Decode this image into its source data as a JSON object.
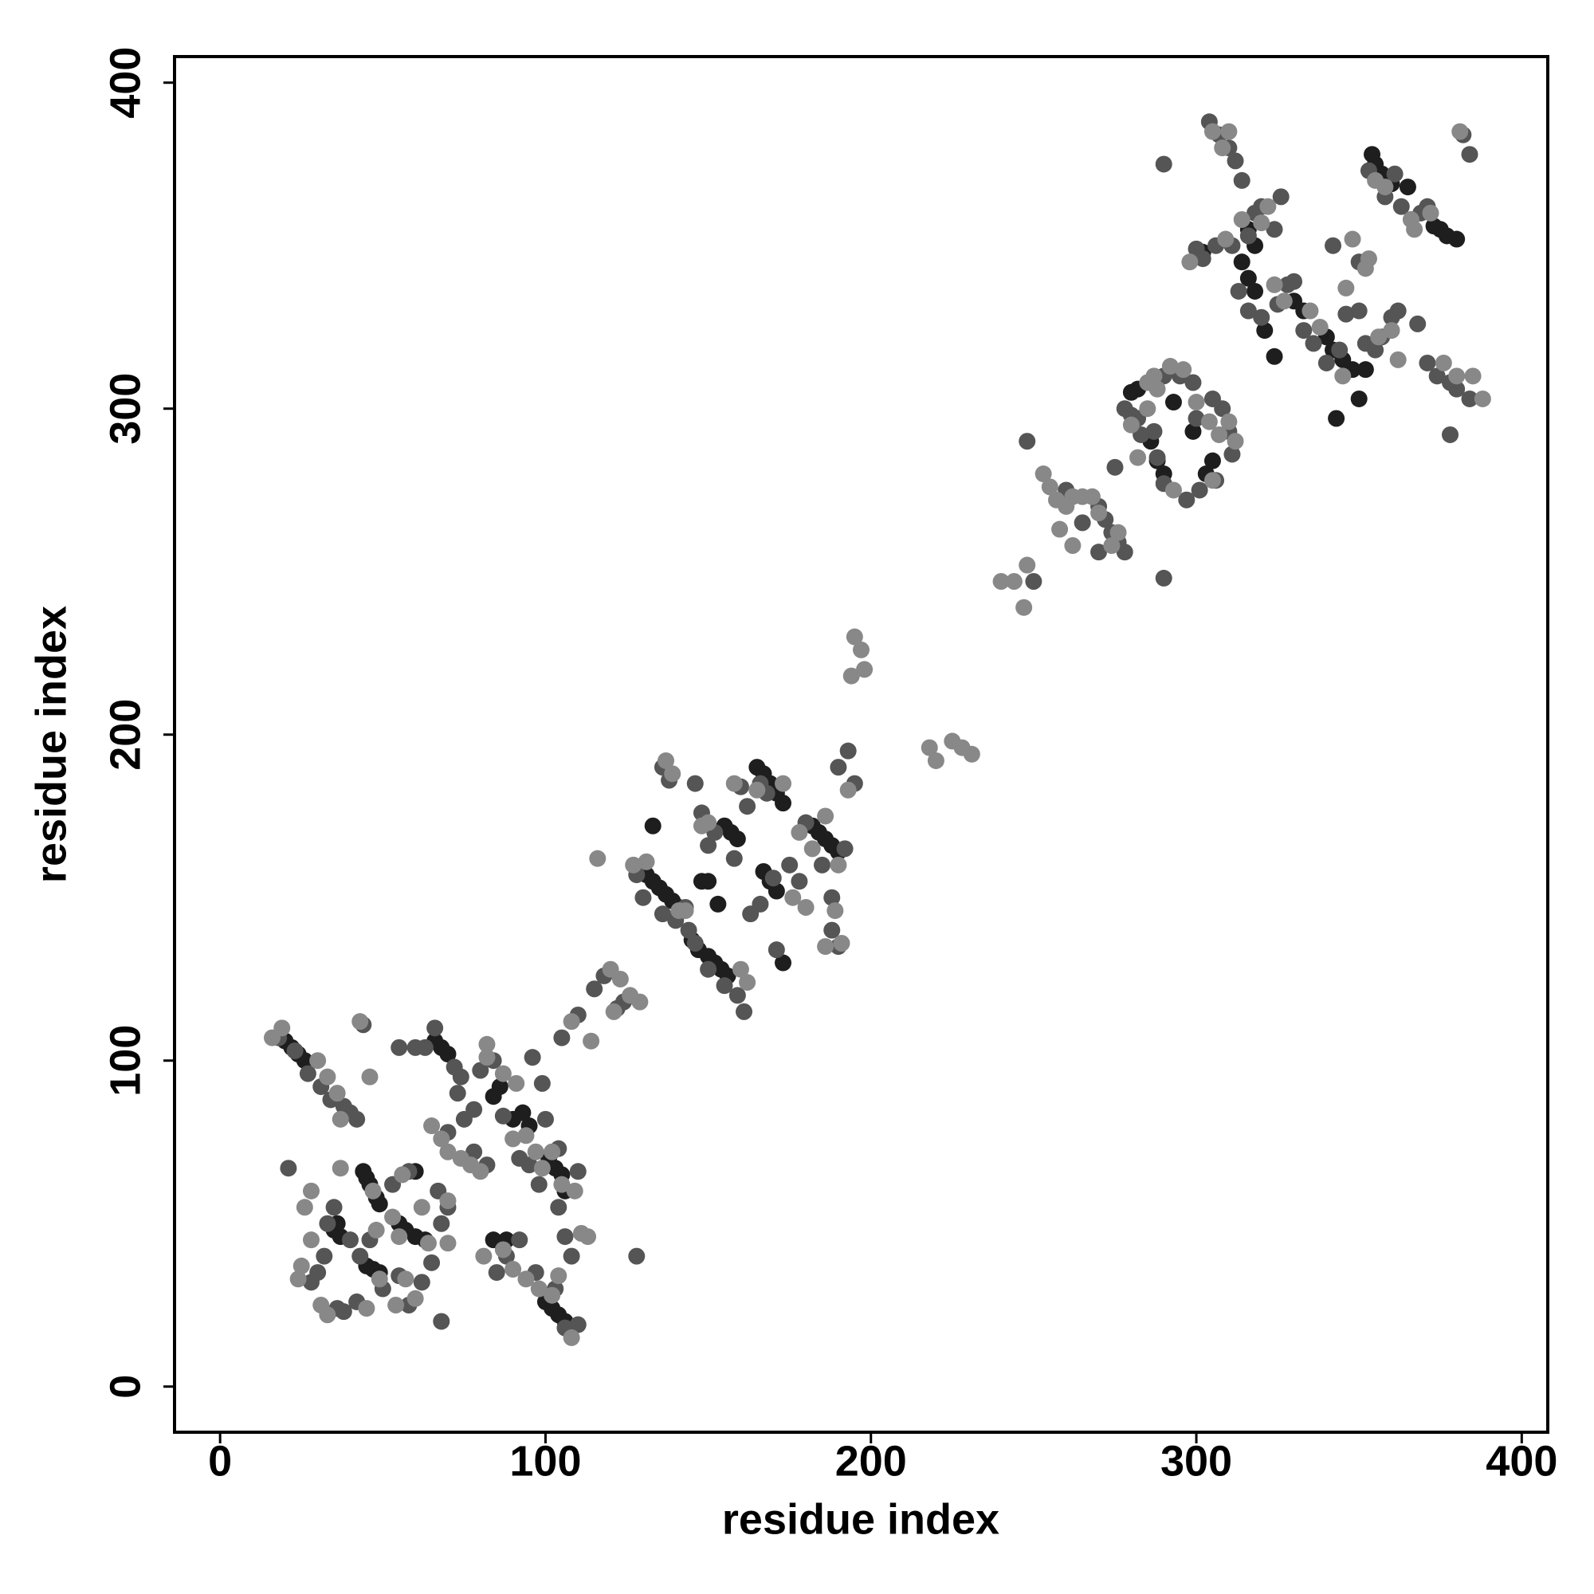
{
  "chart_data": {
    "type": "scatter",
    "x_label": "residue index",
    "y_label": "residue index",
    "xlim": [
      -14,
      408
    ],
    "ylim": [
      -14,
      408
    ],
    "xticks": [
      0,
      100,
      200,
      300,
      400
    ],
    "yticks": [
      0,
      100,
      200,
      300,
      400
    ],
    "grid": false,
    "series": [
      {
        "color": "#1e1e1e",
        "x": [
          20,
          22,
          24,
          26,
          35,
          37,
          36,
          44,
          45,
          46,
          48,
          49,
          45,
          47,
          49,
          55,
          57,
          60,
          63,
          60,
          66,
          68,
          70,
          86,
          84,
          90,
          93,
          95,
          101,
          103,
          105,
          106,
          100,
          102,
          104,
          106,
          84,
          88,
          131,
          133,
          135,
          137,
          139,
          141,
          133,
          148,
          150,
          153,
          145,
          147,
          150,
          152,
          154,
          156,
          155,
          157,
          159,
          165,
          167,
          169,
          171,
          173,
          167,
          169,
          171,
          173,
          182,
          184,
          186,
          188,
          190,
          280,
          282,
          286,
          288,
          290,
          293,
          299,
          303,
          305,
          302,
          354,
          355,
          357,
          360,
          365,
          373,
          375,
          377,
          380,
          316,
          318,
          314,
          316,
          318,
          330,
          333,
          340,
          342,
          345,
          348,
          352,
          350,
          343,
          321,
          324
        ],
        "y": [
          106,
          104,
          102,
          100,
          48,
          46,
          50,
          66,
          64,
          62,
          58,
          56,
          37,
          36,
          35,
          50,
          48,
          46,
          45,
          66,
          106,
          104,
          102,
          92,
          89,
          82,
          84,
          80,
          70,
          67,
          65,
          60,
          26,
          24,
          22,
          20,
          45,
          45,
          157,
          155,
          153,
          151,
          149,
          147,
          172,
          155,
          155,
          148,
          137,
          134,
          132,
          130,
          128,
          126,
          172,
          170,
          168,
          190,
          188,
          185,
          182,
          179,
          158,
          155,
          152,
          130,
          172,
          170,
          168,
          166,
          164,
          305,
          306,
          290,
          284,
          280,
          302,
          293,
          280,
          284,
          348,
          378,
          375,
          372,
          369,
          368,
          356,
          355,
          353,
          352,
          355,
          350,
          345,
          340,
          336,
          333,
          330,
          322,
          318,
          315,
          312,
          312,
          303,
          297,
          324,
          316
        ]
      },
      {
        "color": "#555555",
        "x": [
          18,
          23,
          27,
          31,
          34,
          38,
          40,
          42,
          35,
          33,
          40,
          32,
          30,
          28,
          36,
          38,
          42,
          50,
          55,
          58,
          62,
          65,
          68,
          70,
          67,
          58,
          53,
          46,
          43,
          21,
          68,
          75,
          73,
          78,
          80,
          84,
          87,
          92,
          95,
          98,
          104,
          106,
          108,
          103,
          92,
          88,
          85,
          97,
          106,
          110,
          63,
          66,
          72,
          74,
          44,
          55,
          60,
          70,
          78,
          82,
          96,
          99,
          100,
          104,
          110,
          105,
          110,
          115,
          118,
          122,
          124,
          128,
          128,
          130,
          136,
          140,
          143,
          144,
          146,
          150,
          155,
          159,
          161,
          136,
          138,
          146,
          148,
          150,
          152,
          158,
          160,
          162,
          166,
          163,
          166,
          170,
          175,
          178,
          180,
          185,
          188,
          188,
          190,
          192,
          195,
          190,
          193,
          168,
          171,
          280,
          278,
          290,
          295,
          299,
          300,
          305,
          308,
          310,
          311,
          306,
          301,
          297,
          290,
          288,
          287,
          283,
          282,
          290,
          304,
          307,
          310,
          312,
          314,
          316,
          318,
          320,
          324,
          326,
          300,
          302,
          306,
          311,
          313,
          316,
          320,
          325,
          328,
          330,
          333,
          336,
          340,
          344,
          346,
          350,
          352,
          355,
          357,
          360,
          362,
          342,
          350,
          353,
          358,
          361,
          363,
          366,
          369,
          371,
          368,
          371,
          374,
          378,
          380,
          384,
          382,
          378,
          384,
          270,
          272,
          274,
          276,
          278,
          270,
          250,
          260,
          265,
          275,
          248,
          290
        ],
        "y": [
          107,
          103,
          96,
          92,
          88,
          86,
          84,
          82,
          55,
          50,
          45,
          40,
          35,
          32,
          24,
          23,
          26,
          30,
          34,
          25,
          32,
          38,
          50,
          55,
          60,
          66,
          62,
          45,
          40,
          67,
          20,
          82,
          90,
          85,
          97,
          100,
          83,
          70,
          68,
          62,
          55,
          46,
          40,
          30,
          45,
          40,
          35,
          35,
          18,
          19,
          104,
          110,
          98,
          95,
          111,
          104,
          104,
          78,
          72,
          68,
          101,
          93,
          82,
          73,
          66,
          107,
          114,
          122,
          126,
          116,
          118,
          40,
          157,
          150,
          145,
          143,
          147,
          140,
          136,
          128,
          123,
          120,
          115,
          190,
          186,
          185,
          176,
          166,
          170,
          162,
          184,
          178,
          185,
          145,
          148,
          156,
          160,
          155,
          173,
          160,
          150,
          140,
          135,
          165,
          185,
          190,
          195,
          182,
          134,
          298,
          300,
          310,
          310,
          308,
          297,
          303,
          300,
          293,
          286,
          278,
          275,
          272,
          277,
          285,
          293,
          292,
          297,
          375,
          388,
          384,
          380,
          376,
          370,
          353,
          360,
          362,
          355,
          365,
          349,
          346,
          350,
          350,
          336,
          330,
          328,
          332,
          338,
          339,
          324,
          320,
          314,
          318,
          329,
          330,
          320,
          318,
          322,
          328,
          330,
          350,
          345,
          373,
          365,
          372,
          362,
          358,
          360,
          362,
          326,
          314,
          310,
          308,
          306,
          378,
          384,
          292,
          303,
          270,
          266,
          262,
          259,
          256,
          256,
          247,
          275,
          265,
          282,
          290,
          248
        ]
      },
      {
        "color": "#888888",
        "x": [
          16,
          19,
          30,
          33,
          36,
          37,
          46,
          43,
          28,
          26,
          28,
          25,
          24,
          31,
          33,
          45,
          49,
          54,
          57,
          62,
          64,
          53,
          48,
          47,
          70,
          55,
          37,
          60,
          65,
          68,
          70,
          74,
          77,
          80,
          82,
          82,
          87,
          90,
          94,
          97,
          99,
          102,
          105,
          109,
          81,
          87,
          90,
          94,
          98,
          102,
          104,
          108,
          111,
          113,
          56,
          70,
          91,
          116,
          120,
          123,
          126,
          129,
          121,
          114,
          108,
          127,
          131,
          141,
          143,
          139,
          137,
          148,
          150,
          158,
          165,
          176,
          180,
          182,
          186,
          190,
          189,
          186,
          191,
          193,
          160,
          162,
          173,
          178,
          195,
          197,
          198,
          194,
          218,
          220,
          225,
          228,
          231,
          240,
          244,
          247,
          248,
          253,
          255,
          257,
          260,
          262,
          265,
          268,
          270,
          274,
          276,
          258,
          262,
          285,
          288,
          292,
          296,
          300,
          304,
          307,
          310,
          312,
          305,
          293,
          285,
          280,
          282,
          287,
          305,
          308,
          310,
          314,
          320,
          322,
          309,
          298,
          324,
          327,
          335,
          338,
          345,
          352,
          353,
          356,
          360,
          362,
          355,
          358,
          367,
          372,
          376,
          380,
          381,
          385,
          388,
          346,
          348,
          366
        ],
        "y": [
          107,
          110,
          100,
          95,
          90,
          82,
          95,
          112,
          60,
          55,
          45,
          37,
          33,
          25,
          22,
          24,
          33,
          25,
          33,
          55,
          44,
          52,
          48,
          60,
          57,
          46,
          67,
          27,
          80,
          76,
          72,
          70,
          68,
          66,
          105,
          101,
          96,
          76,
          77,
          72,
          67,
          72,
          62,
          60,
          40,
          42,
          36,
          33,
          30,
          28,
          34,
          15,
          47,
          46,
          65,
          44,
          93,
          162,
          128,
          125,
          120,
          118,
          115,
          106,
          112,
          160,
          161,
          146,
          146,
          188,
          192,
          172,
          173,
          185,
          183,
          150,
          147,
          165,
          175,
          160,
          146,
          135,
          136,
          183,
          128,
          124,
          185,
          170,
          230,
          226,
          220,
          218,
          196,
          192,
          198,
          196,
          194,
          247,
          247,
          239,
          252,
          280,
          276,
          272,
          270,
          273,
          273,
          273,
          268,
          258,
          262,
          263,
          258,
          308,
          306,
          313,
          312,
          302,
          296,
          292,
          296,
          290,
          278,
          275,
          300,
          295,
          285,
          310,
          385,
          380,
          385,
          358,
          357,
          362,
          352,
          345,
          338,
          333,
          330,
          325,
          310,
          343,
          346,
          322,
          324,
          315,
          370,
          368,
          355,
          360,
          314,
          310,
          385,
          310,
          303,
          337,
          352,
          358
        ]
      }
    ]
  }
}
